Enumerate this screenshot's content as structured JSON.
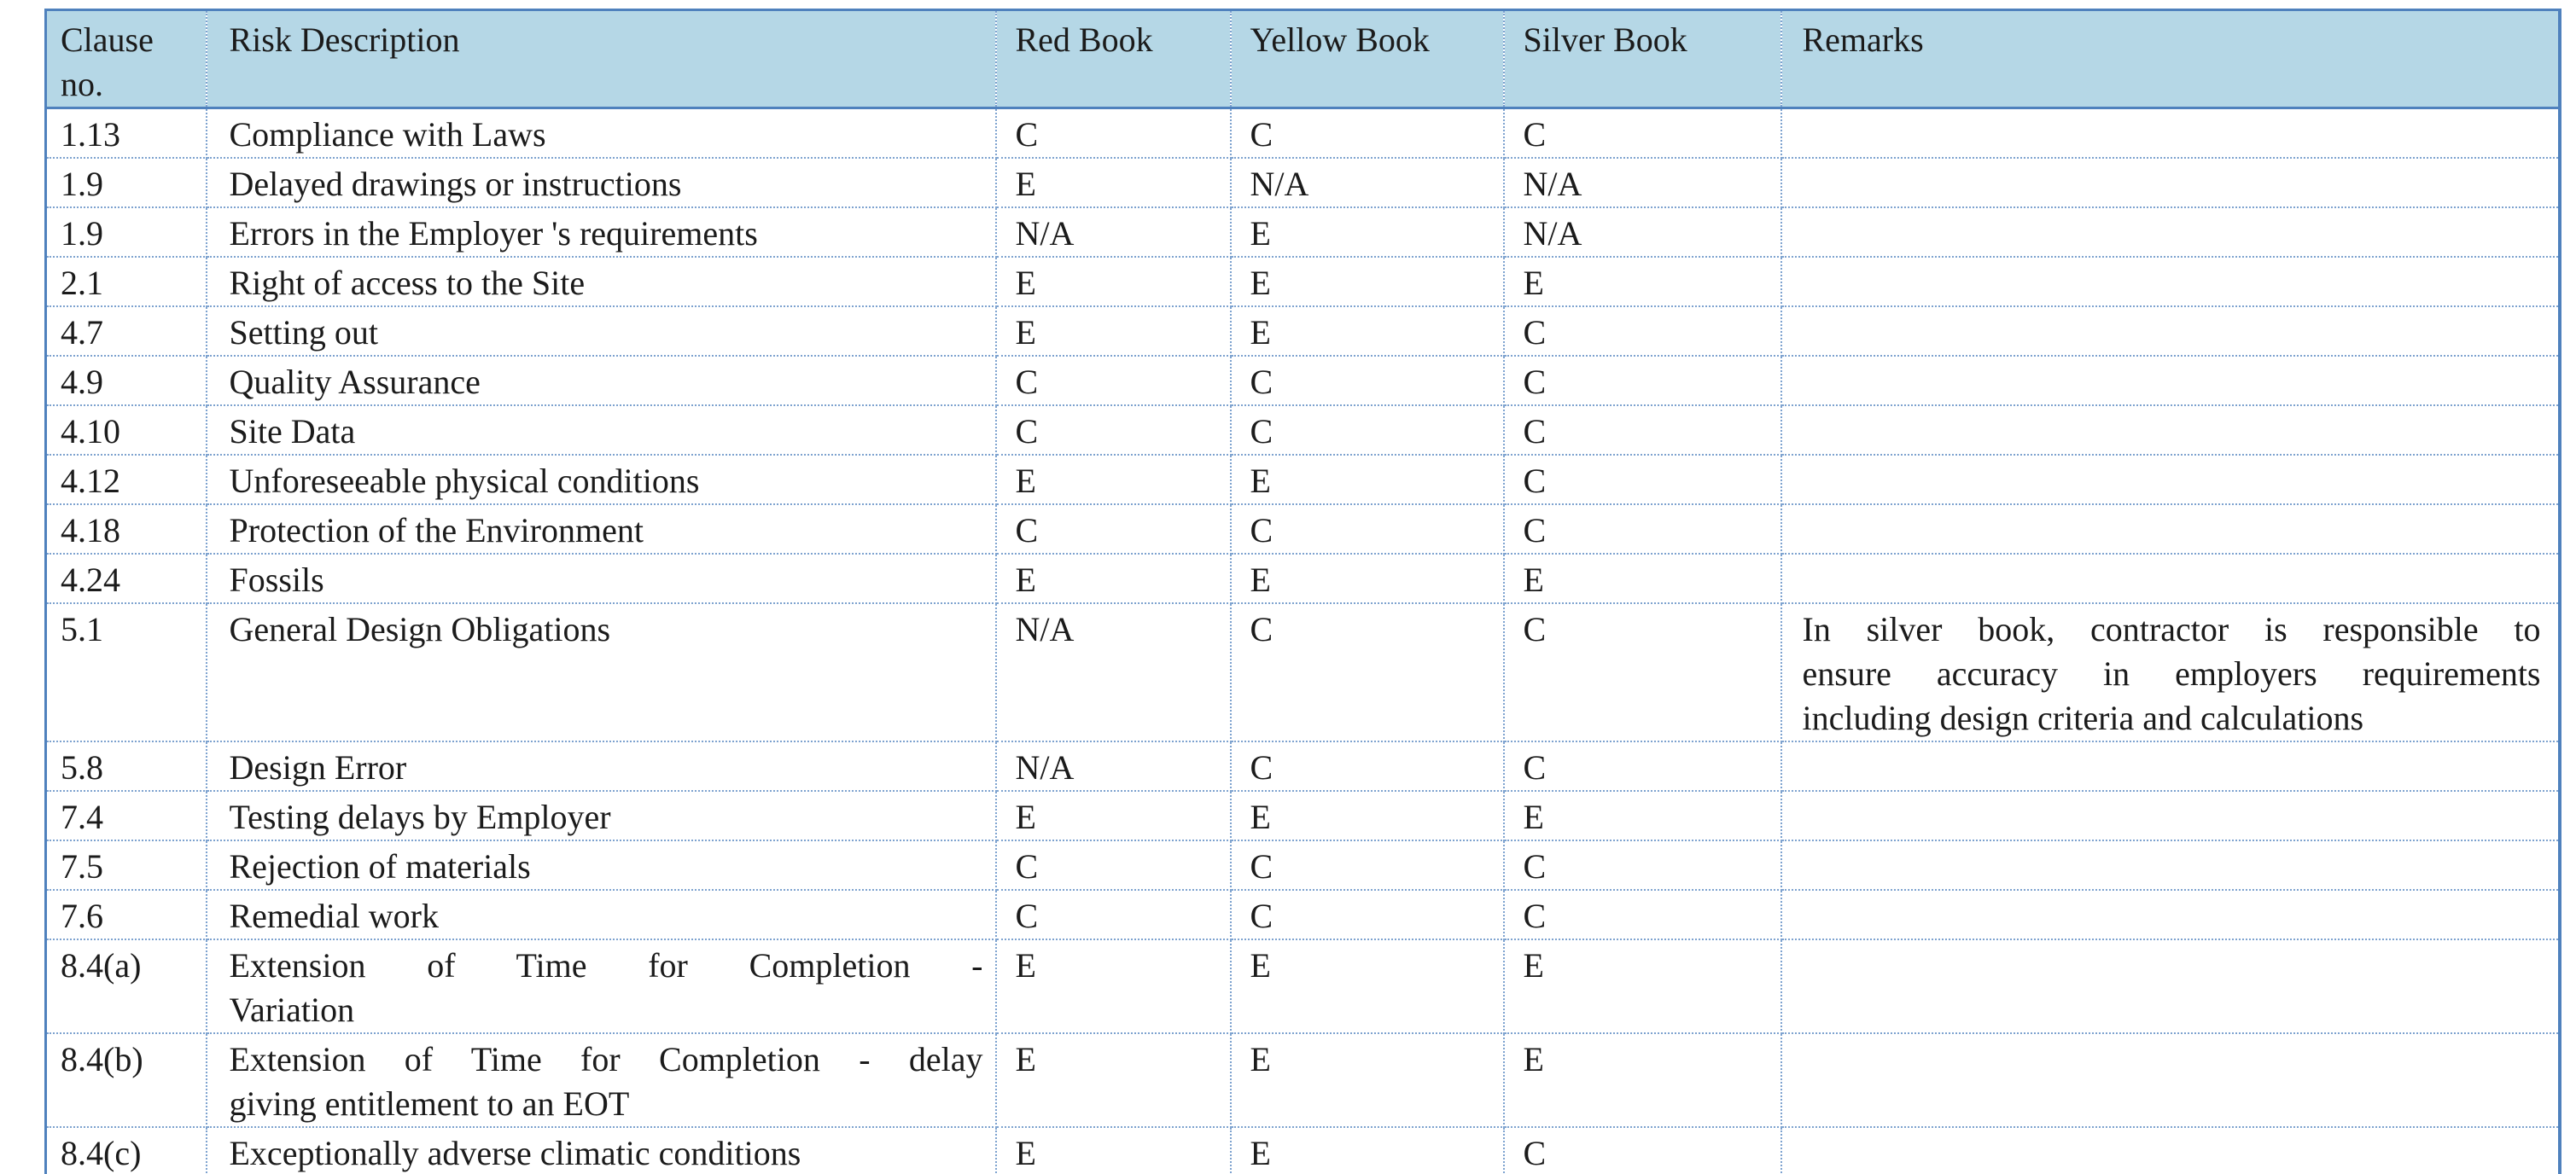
{
  "colors": {
    "header_bg": "#b5d7e6",
    "border_solid": "#4f81bd",
    "border_dotted": "#7da2cf",
    "text": "#1b1b1b"
  },
  "table": {
    "columns": [
      {
        "key": "clause",
        "label": "Clause no."
      },
      {
        "key": "description",
        "label": "Risk Description"
      },
      {
        "key": "red",
        "label": "Red Book"
      },
      {
        "key": "yellow",
        "label": "Yellow Book"
      },
      {
        "key": "silver",
        "label": "Silver Book"
      },
      {
        "key": "remarks",
        "label": "Remarks"
      }
    ],
    "rows": [
      {
        "clause": "1.13",
        "description": "Compliance with Laws",
        "red": "C",
        "yellow": "C",
        "silver": "C",
        "remarks": ""
      },
      {
        "clause": "1.9",
        "description": "Delayed drawings or instructions",
        "red": "E",
        "yellow": "N/A",
        "silver": "N/A",
        "remarks": ""
      },
      {
        "clause": "1.9",
        "description": "Errors in the Employer 's requirements",
        "red": "N/A",
        "yellow": "E",
        "silver": "N/A",
        "remarks": ""
      },
      {
        "clause": "2.1",
        "description": "Right of access to the Site",
        "red": "E",
        "yellow": "E",
        "silver": "E",
        "remarks": ""
      },
      {
        "clause": "4.7",
        "description": "Setting out",
        "red": "E",
        "yellow": "E",
        "silver": "C",
        "remarks": ""
      },
      {
        "clause": "4.9",
        "description": "Quality Assurance",
        "red": "C",
        "yellow": "C",
        "silver": "C",
        "remarks": ""
      },
      {
        "clause": "4.10",
        "description": "Site Data",
        "red": "C",
        "yellow": "C",
        "silver": "C",
        "remarks": ""
      },
      {
        "clause": "4.12",
        "description": "Unforeseeable physical conditions",
        "red": "E",
        "yellow": "E",
        "silver": "C",
        "remarks": ""
      },
      {
        "clause": "4.18",
        "description": "Protection of the Environment",
        "red": "C",
        "yellow": "C",
        "silver": "C",
        "remarks": ""
      },
      {
        "clause": "4.24",
        "description": "Fossils",
        "red": "E",
        "yellow": "E",
        "silver": "E",
        "remarks": ""
      },
      {
        "clause": "5.1",
        "description": "General Design Obligations",
        "red": "N/A",
        "yellow": "C",
        "silver": "C",
        "remarks": [
          "In silver book, contractor is responsible to",
          "ensure accuracy in employers requirements",
          "including design criteria and calculations"
        ]
      },
      {
        "clause": "5.8",
        "description": "Design Error",
        "red": "N/A",
        "yellow": "C",
        "silver": "C",
        "remarks": ""
      },
      {
        "clause": "7.4",
        "description": "Testing delays by Employer",
        "red": "E",
        "yellow": "E",
        "silver": "E",
        "remarks": ""
      },
      {
        "clause": "7.5",
        "description": "Rejection of materials",
        "red": "C",
        "yellow": "C",
        "silver": "C",
        "remarks": ""
      },
      {
        "clause": "7.6",
        "description": "Remedial work",
        "red": "C",
        "yellow": "C",
        "silver": "C",
        "remarks": ""
      },
      {
        "clause": "8.4(a)",
        "description": [
          "Extension of Time for Completion -",
          "Variation"
        ],
        "red": "E",
        "yellow": "E",
        "silver": "E",
        "remarks": ""
      },
      {
        "clause": "8.4(b)",
        "description": [
          "Extension of Time for Completion - delay",
          "giving entitlement to an EOT"
        ],
        "red": "E",
        "yellow": "E",
        "silver": "E",
        "remarks": ""
      },
      {
        "clause": "8.4(c)",
        "description": "Exceptionally adverse climatic conditions",
        "red": "E",
        "yellow": "E",
        "silver": "C",
        "remarks": ""
      }
    ]
  }
}
